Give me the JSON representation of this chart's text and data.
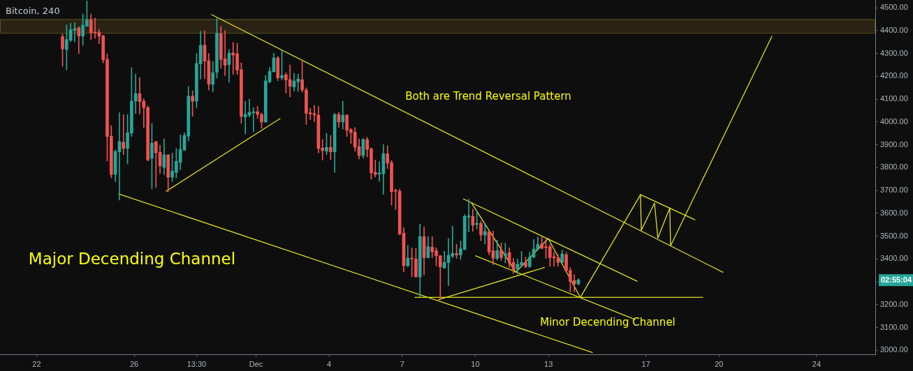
{
  "chart_data": {
    "type": "candlestick",
    "title": "Bitcoin, 240",
    "x": [
      "--11-23T01:30",
      "--11-23T05:30",
      "--11-23T09:30",
      "--11-23T13:30",
      "--11-23T17:30",
      "--11-23T21:30",
      "--11-24T01:30",
      "--11-24T05:30",
      "--11-24T09:30",
      "--11-24T13:30",
      "--11-24T17:30",
      "--11-24T21:30",
      "--11-25T01:30",
      "--11-25T05:30",
      "--11-25T09:30",
      "--11-25T13:30",
      "--11-25T17:30",
      "--11-25T21:30",
      "--11-26T01:30",
      "--11-26T05:30",
      "--11-26T09:30",
      "--11-26T13:30",
      "--11-26T17:30",
      "--11-26T21:30",
      "--11-27T01:30",
      "--11-27T05:30",
      "--11-27T09:30",
      "--11-27T13:30",
      "--11-27T17:30",
      "--11-27T21:30",
      "--11-28T01:30",
      "--11-28T05:30",
      "--11-28T09:30",
      "--11-28T13:30",
      "--11-28T17:30",
      "--11-28T21:30",
      "--11-29T01:30",
      "--11-29T05:30",
      "--11-29T09:30",
      "--11-29T13:30",
      "--11-29T17:30",
      "--11-29T21:30",
      "--11-30T01:30",
      "--11-30T05:30",
      "--11-30T09:30",
      "--11-30T13:30",
      "--11-30T17:30",
      "--11-30T21:30",
      "--12-01T01:30",
      "--12-01T05:30",
      "--12-01T09:30",
      "--12-01T13:30",
      "--12-01T17:30",
      "--12-01T21:30",
      "--12-02T01:30",
      "--12-02T05:30",
      "--12-02T09:30",
      "--12-02T13:30",
      "--12-02T17:30",
      "--12-02T21:30",
      "--12-03T01:30",
      "--12-03T05:30",
      "--12-03T09:30",
      "--12-03T13:30",
      "--12-03T17:30",
      "--12-03T21:30",
      "--12-04T01:30",
      "--12-04T05:30",
      "--12-04T09:30",
      "--12-04T13:30",
      "--12-04T17:30",
      "--12-04T21:30",
      "--12-05T01:30",
      "--12-05T05:30",
      "--12-05T09:30",
      "--12-05T13:30",
      "--12-05T17:30",
      "--12-05T21:30",
      "--12-06T01:30",
      "--12-06T05:30",
      "--12-06T09:30",
      "--12-06T13:30",
      "--12-06T17:30",
      "--12-06T21:30",
      "--12-07T01:30",
      "--12-07T05:30",
      "--12-07T09:30",
      "--12-07T13:30",
      "--12-07T17:30",
      "--12-07T21:30",
      "--12-08T01:30",
      "--12-08T05:30",
      "--12-08T09:30",
      "--12-08T13:30",
      "--12-08T17:30",
      "--12-08T21:30",
      "--12-09T01:30",
      "--12-09T05:30",
      "--12-09T09:30",
      "--12-09T13:30",
      "--12-09T17:30",
      "--12-09T21:30",
      "--12-10T01:30",
      "--12-10T05:30",
      "--12-10T09:30",
      "--12-10T13:30",
      "--12-10T17:30",
      "--12-10T21:30",
      "--12-11T01:30",
      "--12-11T05:30",
      "--12-11T09:30",
      "--12-11T13:30",
      "--12-11T17:30",
      "--12-11T21:30",
      "--12-12T01:30",
      "--12-12T05:30",
      "--12-12T09:30",
      "--12-12T13:30",
      "--12-12T17:30",
      "--12-12T21:30",
      "--12-13T01:30",
      "--12-13T05:30",
      "--12-13T09:30",
      "--12-13T13:30",
      "--12-13T17:30",
      "--12-13T21:30",
      "--12-14T01:30",
      "--12-14T05:30"
    ],
    "ohlc": [
      [
        4374,
        4385,
        4244,
        4320
      ],
      [
        4317,
        4425,
        4228,
        4361
      ],
      [
        4358,
        4432,
        4351,
        4404
      ],
      [
        4401,
        4435,
        4351,
        4409
      ],
      [
        4412,
        4417,
        4300,
        4376
      ],
      [
        4376,
        4473,
        4335,
        4424
      ],
      [
        4419,
        4530,
        4419,
        4448
      ],
      [
        4448,
        4473,
        4361,
        4391
      ],
      [
        4394,
        4455,
        4366,
        4390
      ],
      [
        4393,
        4406,
        4343,
        4376
      ],
      [
        4378,
        4380,
        4259,
        4272
      ],
      [
        4274,
        4298,
        3829,
        3936
      ],
      [
        3938,
        3984,
        3755,
        3770
      ],
      [
        3770,
        3877,
        3739,
        3871
      ],
      [
        3869,
        4041,
        3658,
        3914
      ],
      [
        3911,
        4032,
        3857,
        3884
      ],
      [
        3884,
        4033,
        3816,
        3953
      ],
      [
        3951,
        4238,
        3936,
        4091
      ],
      [
        4091,
        4210,
        4037,
        4124
      ],
      [
        4124,
        4195,
        4035,
        4089
      ],
      [
        4091,
        4101,
        3976,
        4063
      ],
      [
        4063,
        4070,
        3829,
        3834
      ],
      [
        3841,
        3993,
        3707,
        3908
      ],
      [
        3914,
        3916,
        3713,
        3865
      ],
      [
        3867,
        3898,
        3774,
        3808
      ],
      [
        3801,
        3926,
        3770,
        3856
      ],
      [
        3856,
        3858,
        3694,
        3758
      ],
      [
        3758,
        3864,
        3738,
        3785
      ],
      [
        3779,
        3884,
        3755,
        3828
      ],
      [
        3823,
        3944,
        3791,
        3880
      ],
      [
        3877,
        3953,
        3875,
        3941
      ],
      [
        3938,
        4155,
        3917,
        4113
      ],
      [
        4113,
        4137,
        4025,
        4091
      ],
      [
        4091,
        4300,
        4061,
        4256
      ],
      [
        4254,
        4397,
        4188,
        4336
      ],
      [
        4336,
        4400,
        4190,
        4266
      ],
      [
        4268,
        4300,
        4140,
        4165
      ],
      [
        4165,
        4265,
        4132,
        4216
      ],
      [
        4217,
        4455,
        4192,
        4389
      ],
      [
        4387,
        4418,
        4234,
        4274
      ],
      [
        4277,
        4400,
        4204,
        4248
      ],
      [
        4251,
        4318,
        4174,
        4302
      ],
      [
        4302,
        4348,
        4208,
        4293
      ],
      [
        4299,
        4345,
        4208,
        4227
      ],
      [
        4229,
        4259,
        3994,
        4025
      ],
      [
        4022,
        4091,
        3948,
        4033
      ],
      [
        4030,
        4100,
        4022,
        4042
      ],
      [
        4040,
        4063,
        3957,
        4045
      ],
      [
        4045,
        4069,
        4015,
        4033
      ],
      [
        4033,
        4040,
        3972,
        4000
      ],
      [
        4000,
        4204,
        3998,
        4180
      ],
      [
        4176,
        4239,
        4171,
        4222
      ],
      [
        4220,
        4302,
        4218,
        4281
      ],
      [
        4281,
        4287,
        4181,
        4193
      ],
      [
        4193,
        4313,
        4184,
        4204
      ],
      [
        4207,
        4216,
        4126,
        4184
      ],
      [
        4186,
        4250,
        4110,
        4156
      ],
      [
        4153,
        4213,
        4135,
        4180
      ],
      [
        4176,
        4210,
        4134,
        4188
      ],
      [
        4185,
        4265,
        4130,
        4140
      ],
      [
        4140,
        4150,
        3989,
        4038
      ],
      [
        4040,
        4060,
        4010,
        4035
      ],
      [
        4037,
        4073,
        4001,
        4031
      ],
      [
        4030,
        4069,
        3864,
        3884
      ],
      [
        3886,
        3923,
        3833,
        3875
      ],
      [
        3872,
        3950,
        3857,
        3889
      ],
      [
        3889,
        3941,
        3835,
        3869
      ],
      [
        3869,
        4038,
        3779,
        4033
      ],
      [
        4033,
        4042,
        3976,
        4000
      ],
      [
        4000,
        4091,
        3969,
        4030
      ],
      [
        4030,
        4032,
        3936,
        3964
      ],
      [
        3966,
        3972,
        3905,
        3954
      ],
      [
        3956,
        3976,
        3872,
        3890
      ],
      [
        3892,
        3926,
        3838,
        3853
      ],
      [
        3853,
        3928,
        3842,
        3923
      ],
      [
        3923,
        3933,
        3847,
        3880
      ],
      [
        3883,
        3886,
        3749,
        3777
      ],
      [
        3780,
        3834,
        3759,
        3770
      ],
      [
        3772,
        3826,
        3740,
        3777
      ],
      [
        3773,
        3901,
        3683,
        3861
      ],
      [
        3861,
        3896,
        3796,
        3820
      ],
      [
        3822,
        3831,
        3636,
        3695
      ],
      [
        3701,
        3706,
        3617,
        3697
      ],
      [
        3697,
        3706,
        3505,
        3510
      ],
      [
        3513,
        3538,
        3344,
        3371
      ],
      [
        3371,
        3460,
        3366,
        3404
      ],
      [
        3404,
        3449,
        3322,
        3401
      ],
      [
        3400,
        3446,
        3320,
        3322
      ],
      [
        3322,
        3553,
        3235,
        3498
      ],
      [
        3498,
        3541,
        3330,
        3406
      ],
      [
        3406,
        3498,
        3404,
        3454
      ],
      [
        3452,
        3498,
        3406,
        3431
      ],
      [
        3436,
        3449,
        3370,
        3414
      ],
      [
        3414,
        3416,
        3225,
        3365
      ],
      [
        3361,
        3434,
        3358,
        3385
      ],
      [
        3385,
        3490,
        3283,
        3416
      ],
      [
        3412,
        3544,
        3406,
        3425
      ],
      [
        3425,
        3465,
        3403,
        3418
      ],
      [
        3418,
        3479,
        3398,
        3445
      ],
      [
        3442,
        3595,
        3440,
        3587
      ],
      [
        3584,
        3662,
        3518,
        3589
      ],
      [
        3587,
        3618,
        3521,
        3548
      ],
      [
        3551,
        3612,
        3531,
        3556
      ],
      [
        3556,
        3566,
        3480,
        3505
      ],
      [
        3505,
        3556,
        3465,
        3521
      ],
      [
        3519,
        3526,
        3419,
        3431
      ],
      [
        3436,
        3523,
        3375,
        3403
      ],
      [
        3403,
        3483,
        3395,
        3436
      ],
      [
        3440,
        3470,
        3393,
        3406
      ],
      [
        3414,
        3470,
        3383,
        3423
      ],
      [
        3428,
        3449,
        3363,
        3383
      ],
      [
        3385,
        3403,
        3337,
        3355
      ],
      [
        3355,
        3400,
        3334,
        3377
      ],
      [
        3373,
        3434,
        3371,
        3385
      ],
      [
        3385,
        3408,
        3362,
        3367
      ],
      [
        3367,
        3429,
        3362,
        3408
      ],
      [
        3408,
        3485,
        3405,
        3444
      ],
      [
        3442,
        3497,
        3439,
        3464
      ],
      [
        3466,
        3497,
        3444,
        3447
      ],
      [
        3454,
        3485,
        3403,
        3449
      ],
      [
        3454,
        3464,
        3368,
        3406
      ],
      [
        3410,
        3429,
        3368,
        3405
      ],
      [
        3406,
        3419,
        3368,
        3385
      ],
      [
        3385,
        3439,
        3383,
        3422
      ],
      [
        3419,
        3429,
        3347,
        3349
      ],
      [
        3350,
        3363,
        3256,
        3302
      ],
      [
        3306,
        3332,
        3256,
        3291
      ],
      [
        3291,
        3314,
        3286,
        3309
      ]
    ],
    "colors": [
      "#ef5350",
      "#26a69a",
      "#26a69a",
      "#26a69a",
      "#ef5350",
      "#26a69a",
      "#26a69a",
      "#ef5350",
      "#ef5350",
      "#ef5350",
      "#ef5350",
      "#ef5350",
      "#ef5350",
      "#26a69a",
      "#26a69a",
      "#ef5350",
      "#26a69a",
      "#26a69a",
      "#26a69a",
      "#ef5350",
      "#ef5350",
      "#ef5350",
      "#26a69a",
      "#ef5350",
      "#ef5350",
      "#26a69a",
      "#ef5350",
      "#26a69a",
      "#26a69a",
      "#26a69a",
      "#26a69a",
      "#26a69a",
      "#ef5350",
      "#26a69a",
      "#26a69a",
      "#ef5350",
      "#ef5350",
      "#26a69a",
      "#26a69a",
      "#ef5350",
      "#ef5350",
      "#26a69a",
      "#ef5350",
      "#ef5350",
      "#ef5350",
      "#26a69a",
      "#26a69a",
      "#26a69a",
      "#ef5350",
      "#ef5350",
      "#26a69a",
      "#26a69a",
      "#26a69a",
      "#ef5350",
      "#26a69a",
      "#ef5350",
      "#ef5350",
      "#26a69a",
      "#26a69a",
      "#ef5350",
      "#ef5350",
      "#ef5350",
      "#ef5350",
      "#ef5350",
      "#ef5350",
      "#26a69a",
      "#ef5350",
      "#26a69a",
      "#ef5350",
      "#26a69a",
      "#ef5350",
      "#ef5350",
      "#ef5350",
      "#ef5350",
      "#26a69a",
      "#ef5350",
      "#ef5350",
      "#ef5350",
      "#26a69a",
      "#26a69a",
      "#ef5350",
      "#ef5350",
      "#ef5350",
      "#ef5350",
      "#ef5350",
      "#26a69a",
      "#ef5350",
      "#ef5350",
      "#26a69a",
      "#ef5350",
      "#26a69a",
      "#ef5350",
      "#ef5350",
      "#ef5350",
      "#26a69a",
      "#26a69a",
      "#26a69a",
      "#ef5350",
      "#26a69a",
      "#26a69a",
      "#26a69a",
      "#ef5350",
      "#26a69a",
      "#ef5350",
      "#26a69a",
      "#ef5350",
      "#ef5350",
      "#26a69a",
      "#ef5350",
      "#26a69a",
      "#ef5350",
      "#ef5350",
      "#26a69a",
      "#26a69a",
      "#ef5350",
      "#26a69a",
      "#26a69a",
      "#26a69a",
      "#ef5350",
      "#ef5350",
      "#ef5350",
      "#ef5350",
      "#ef5350",
      "#26a69a",
      "#ef5350",
      "#ef5350",
      "#ef5350",
      "#26a69a"
    ],
    "series": [
      {
        "type": "line",
        "color": "#e0e020",
        "x": [
          "--11-29T04:20",
          "--12-20T03:50"
        ],
        "values": [
          4470,
          3342
        ]
      },
      {
        "type": "line",
        "color": "#e0e020",
        "x": [
          "--11-25T08:50",
          "--12-14T19:10"
        ],
        "values": [
          3685,
          2991
        ]
      },
      {
        "type": "line",
        "color": "#e0e020",
        "x": [
          "--11-27T07:40",
          "--12-01T23:45"
        ],
        "values": [
          3697,
          4015
        ]
      },
      {
        "type": "line",
        "color": "#e0e020",
        "x": [
          "--12-07T12:30",
          "--12-19T07:55"
        ],
        "values": [
          3232,
          3232
        ]
      },
      {
        "type": "line",
        "color": "#e0e020",
        "x": [
          "--12-08T12:00",
          "--12-12T20:00"
        ],
        "values": [
          3222,
          3363
        ]
      },
      {
        "type": "line",
        "color": "#e0e020",
        "x": [
          "--12-09T12:15",
          "--12-16T15:10"
        ],
        "values": [
          3663,
          3303
        ]
      },
      {
        "type": "line",
        "color": "#e0e020",
        "x": [
          "--12-10T00:15",
          "--12-16T13:10"
        ],
        "values": [
          3414,
          3135
        ]
      },
      {
        "type": "line",
        "color": "#e0e020",
        "x": [
          "--12-09T20:10",
          "--12-11T15:50",
          "--12-12T23:45",
          "--12-14T07:25",
          "--12-16T18:40",
          "--12-16T19:25",
          "--12-17T08:25",
          "--12-17T11:45",
          "--12-17T23:30",
          "--12-18T00:15",
          "--12-22T04:05"
        ],
        "values": [
          3646,
          3342,
          3490,
          3232,
          3682,
          3526,
          3645,
          3492,
          3624,
          3458,
          4375
        ]
      },
      {
        "type": "line",
        "color": "#e0e020",
        "x": [
          "--12-16T18:40",
          "--12-19T00:15"
        ],
        "values": [
          3682,
          3572
        ]
      }
    ],
    "bands": [
      {
        "axis": "y",
        "from": 4390,
        "to": 4450,
        "color": "#2a2212"
      }
    ],
    "annotations": [
      "Both are Trend Reversal Pattern",
      "Major Decending Channel",
      "Minor Decending Channel",
      "02:55:04"
    ],
    "xlim": [
      "--11-20T11:55",
      "--12-26T09:50"
    ],
    "xticks": [
      {
        "value": "--11-22",
        "label": "22"
      },
      {
        "value": "--11-26",
        "label": "26"
      },
      {
        "value": "--11-28T13:30",
        "label": "13:30"
      },
      {
        "value": "--12-01",
        "label": "Dec"
      },
      {
        "value": "--12-04",
        "label": "4"
      },
      {
        "value": "--12-07",
        "label": "7"
      },
      {
        "value": "--12-10",
        "label": "10"
      },
      {
        "value": "--12-13",
        "label": "13"
      },
      {
        "value": "--12-17",
        "label": "17"
      },
      {
        "value": "--12-20",
        "label": "20"
      },
      {
        "value": "--12-24",
        "label": "24"
      }
    ],
    "ylim": [
      2983,
      4534
    ],
    "yticks": [
      {
        "value": 3000,
        "label": "3000.00"
      },
      {
        "value": 3100,
        "label": "3100.00"
      },
      {
        "value": 3200,
        "label": "3200.00"
      },
      {
        "value": 3300,
        "label": null
      },
      {
        "value": 3400,
        "label": "3400.00"
      },
      {
        "value": 3500,
        "label": "3500.00"
      },
      {
        "value": 3600,
        "label": "3600.00"
      },
      {
        "value": 3700,
        "label": "3700.00"
      },
      {
        "value": 3800,
        "label": "3800.00"
      },
      {
        "value": 3900,
        "label": "3900.00"
      },
      {
        "value": 4000,
        "label": "4000.00"
      },
      {
        "value": 4100,
        "label": "4100.00"
      },
      {
        "value": 4200,
        "label": "4200.00"
      },
      {
        "value": 4300,
        "label": "4300.00"
      },
      {
        "value": 4400,
        "label": "4400.00"
      },
      {
        "value": 4500,
        "label": "4500.00"
      }
    ]
  }
}
